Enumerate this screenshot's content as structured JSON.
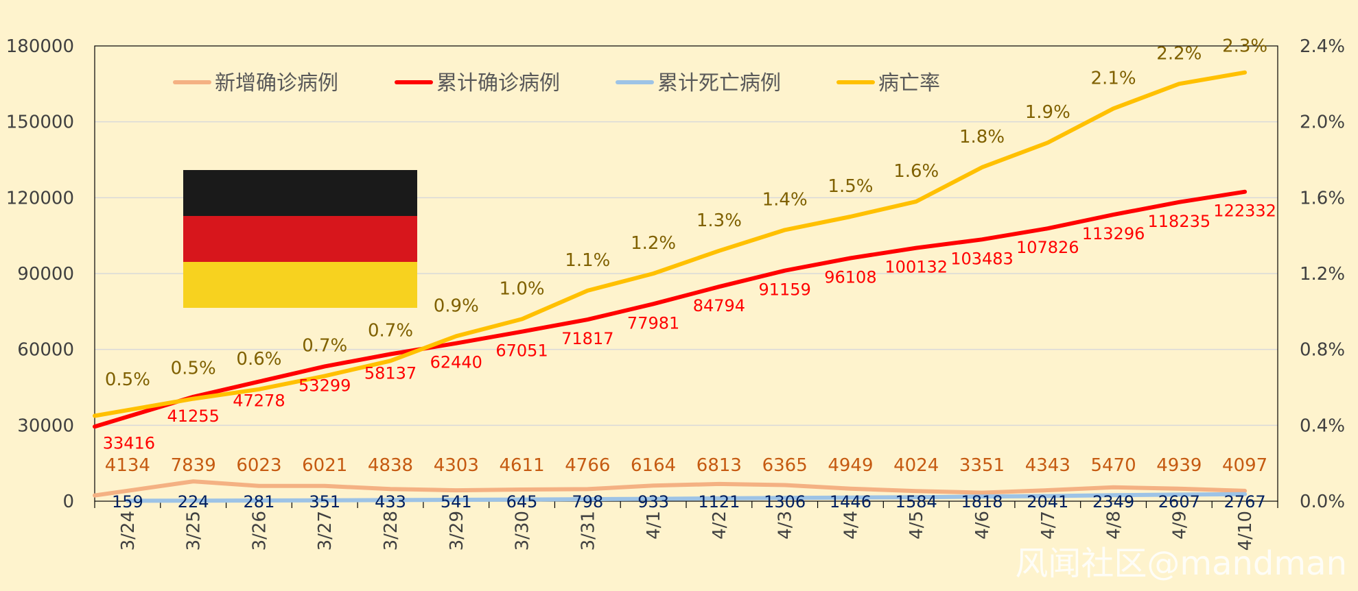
{
  "watermark": "风闻社区@mandman",
  "colors": {
    "background": "#fef3cd",
    "new_cases": "#f4b183",
    "total_cases": "#ff0000",
    "total_deaths": "#9dc3e6",
    "fatality_rate": "#ffc000",
    "new_cases_label": "#c55a11",
    "total_cases_label": "#ff0000",
    "total_deaths_label": "#002060",
    "fatality_rate_label": "#7f6000",
    "flag_black": "#1a1a1a",
    "flag_red": "#d7161c",
    "flag_gold": "#f7d21f"
  },
  "flag": {
    "icon": "germany-flag-icon"
  },
  "chart_data": {
    "type": "line",
    "categories": [
      "3/24",
      "3/25",
      "3/26",
      "3/27",
      "3/28",
      "3/29",
      "3/30",
      "3/31",
      "4/1",
      "4/2",
      "4/3",
      "4/4",
      "4/5",
      "4/6",
      "4/7",
      "4/8",
      "4/9",
      "4/10"
    ],
    "y_left": {
      "ylim": [
        0,
        180000
      ],
      "ticks": [
        "0",
        "30000",
        "60000",
        "90000",
        "120000",
        "150000",
        "180000"
      ]
    },
    "y_right": {
      "ylim": [
        0,
        0.024
      ],
      "ticks": [
        "0.0%",
        "0.4%",
        "0.8%",
        "1.2%",
        "1.6%",
        "2.0%",
        "2.4%"
      ]
    },
    "legend_position": "top-left",
    "grid": true,
    "series": [
      {
        "name": "新增确诊病例",
        "axis": "left",
        "values": [
          4134,
          7839,
          6023,
          6021,
          4838,
          4303,
          4611,
          4766,
          6164,
          6813,
          6365,
          4949,
          4024,
          3351,
          4343,
          5470,
          4939,
          4097
        ],
        "labels": [
          "4134",
          "7839",
          "6023",
          "6021",
          "4838",
          "4303",
          "4611",
          "4766",
          "6164",
          "6813",
          "6365",
          "4949",
          "4024",
          "3351",
          "4343",
          "5470",
          "4939",
          "4097"
        ]
      },
      {
        "name": "累计确诊病例",
        "axis": "left",
        "values": [
          33416,
          41255,
          47278,
          53299,
          58137,
          62440,
          67051,
          71817,
          77981,
          84794,
          91159,
          96108,
          100132,
          103483,
          107826,
          113296,
          118235,
          122332
        ],
        "labels": [
          "33416",
          "41255",
          "47278",
          "53299",
          "58137",
          "62440",
          "67051",
          "71817",
          "77981",
          "84794",
          "91159",
          "96108",
          "100132",
          "103483",
          "107826",
          "113296",
          "118235",
          "122332"
        ]
      },
      {
        "name": "累计死亡病例",
        "axis": "left",
        "values": [
          159,
          224,
          281,
          351,
          433,
          541,
          645,
          798,
          933,
          1121,
          1306,
          1446,
          1584,
          1818,
          2041,
          2349,
          2607,
          2767
        ],
        "labels": [
          "159",
          "224",
          "281",
          "351",
          "433",
          "541",
          "645",
          "798",
          "933",
          "1121",
          "1306",
          "1446",
          "1584",
          "1818",
          "2041",
          "2349",
          "2607",
          "2767"
        ]
      },
      {
        "name": "病亡率",
        "axis": "right",
        "values": [
          0.0048,
          0.0054,
          0.0059,
          0.0066,
          0.0074,
          0.0087,
          0.0096,
          0.0111,
          0.012,
          0.0132,
          0.0143,
          0.015,
          0.0158,
          0.0176,
          0.0189,
          0.0207,
          0.022,
          0.0226
        ],
        "labels": [
          "0.5%",
          "0.5%",
          "0.6%",
          "0.7%",
          "0.7%",
          "0.9%",
          "1.0%",
          "1.1%",
          "1.2%",
          "1.3%",
          "1.4%",
          "1.5%",
          "1.6%",
          "1.8%",
          "1.9%",
          "2.1%",
          "2.2%",
          "2.3%"
        ]
      }
    ]
  }
}
